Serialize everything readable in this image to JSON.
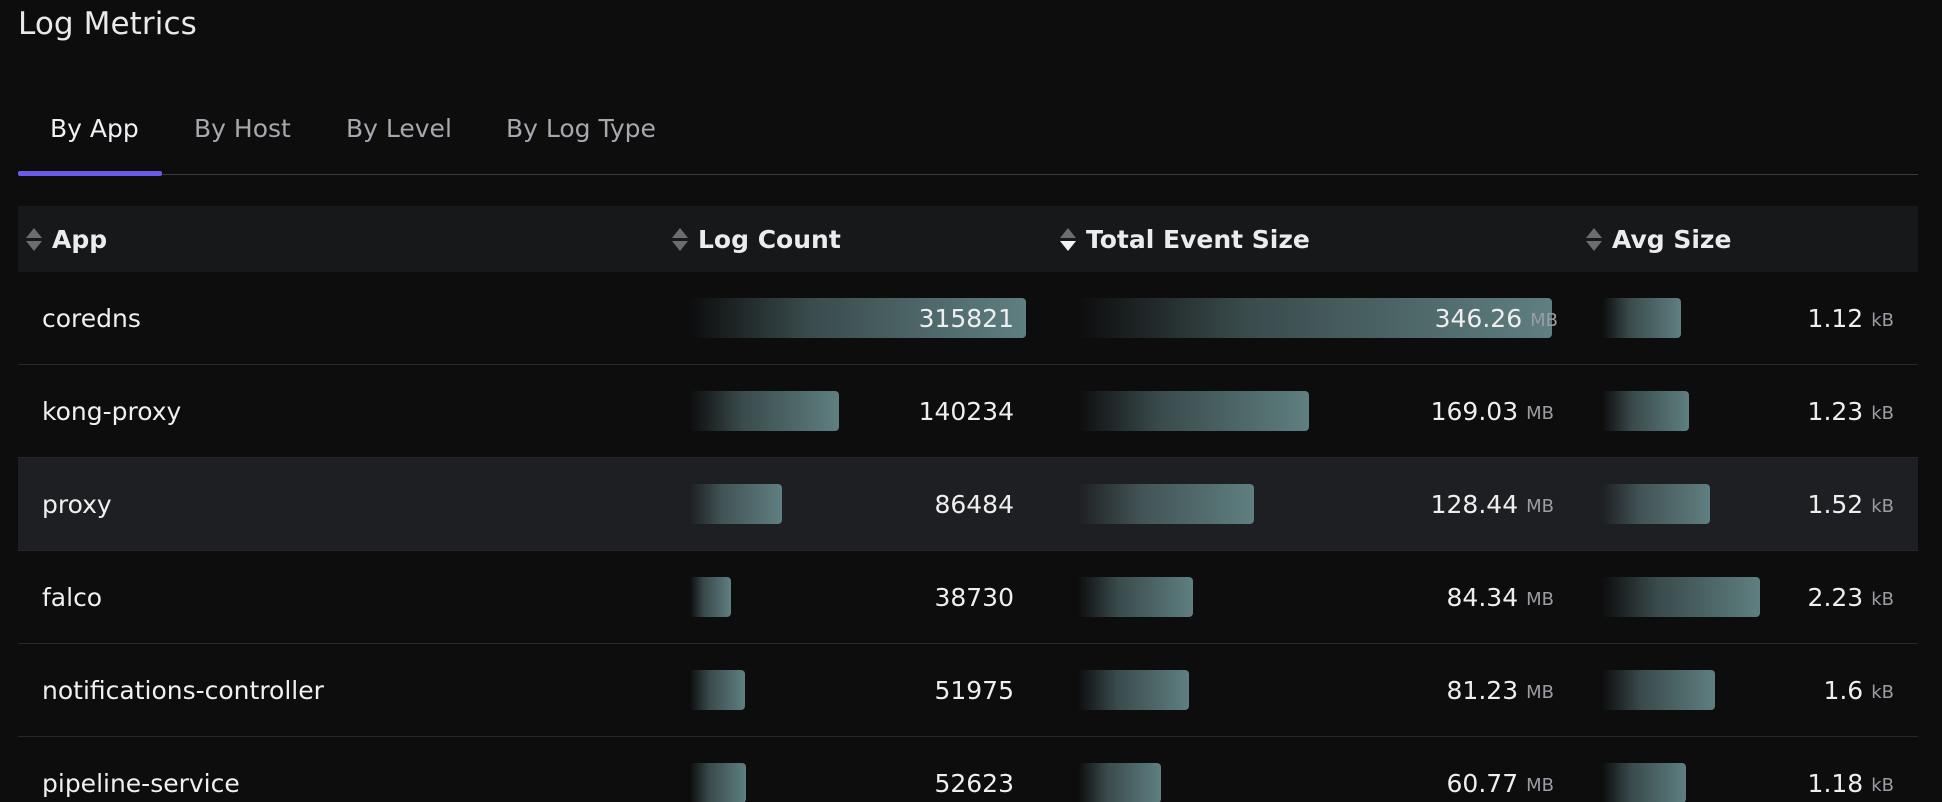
{
  "page": {
    "title": "Log Metrics"
  },
  "tabs": [
    {
      "label": "By App",
      "active": true
    },
    {
      "label": "By Host",
      "active": false
    },
    {
      "label": "By Level",
      "active": false
    },
    {
      "label": "By Log Type",
      "active": false
    }
  ],
  "colors": {
    "accent": "#6a5ce6",
    "bar": "#5f7f80",
    "background": "#0d0d0e",
    "highlight_row": "#1e1f22"
  },
  "table": {
    "columns": [
      {
        "label": "App",
        "sort": "none"
      },
      {
        "label": "Log Count",
        "sort": "none"
      },
      {
        "label": "Total Event Size",
        "sort": "desc"
      },
      {
        "label": "Avg Size",
        "sort": "none"
      }
    ],
    "units": {
      "size": "MB",
      "avg": "kB"
    },
    "rows": [
      {
        "app": "coredns",
        "log_count": "315821",
        "log_count_value": 315821,
        "total_size": "346.26",
        "total_size_value": 346.26,
        "avg_size": "1.12",
        "avg_size_value": 1.12
      },
      {
        "app": "kong-proxy",
        "log_count": "140234",
        "log_count_value": 140234,
        "total_size": "169.03",
        "total_size_value": 169.03,
        "avg_size": "1.23",
        "avg_size_value": 1.23
      },
      {
        "app": "proxy",
        "log_count": "86484",
        "log_count_value": 86484,
        "total_size": "128.44",
        "total_size_value": 128.44,
        "avg_size": "1.52",
        "avg_size_value": 1.52,
        "highlighted": true
      },
      {
        "app": "falco",
        "log_count": "38730",
        "log_count_value": 38730,
        "total_size": "84.34",
        "total_size_value": 84.34,
        "avg_size": "2.23",
        "avg_size_value": 2.23
      },
      {
        "app": "notifications-controller",
        "log_count": "51975",
        "log_count_value": 51975,
        "total_size": "81.23",
        "total_size_value": 81.23,
        "avg_size": "1.6",
        "avg_size_value": 1.6
      },
      {
        "app": "pipeline-service",
        "log_count": "52623",
        "log_count_value": 52623,
        "total_size": "60.77",
        "total_size_value": 60.77,
        "avg_size": "1.18",
        "avg_size_value": 1.18
      }
    ]
  }
}
